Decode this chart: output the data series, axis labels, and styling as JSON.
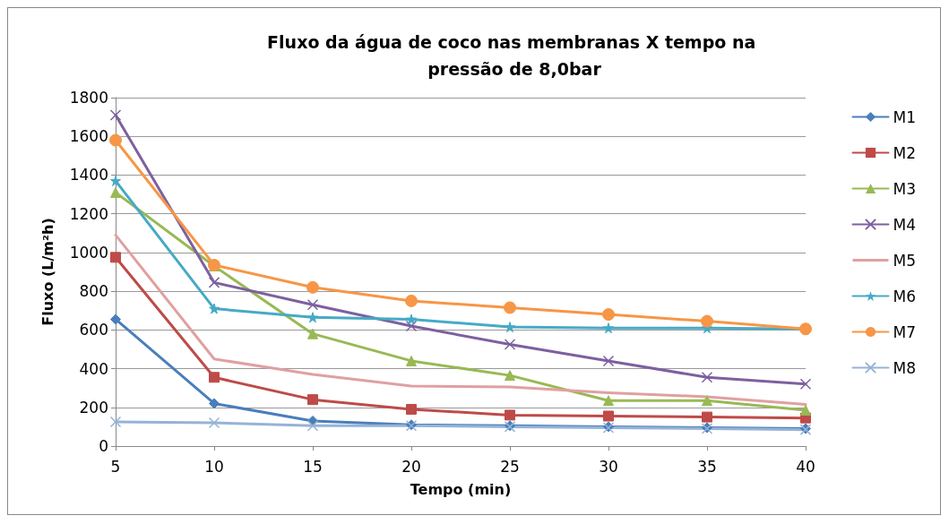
{
  "chart_data": {
    "type": "line",
    "title": "Fluxo da água de coco nas membranas X tempo na pressão de 8,0bar",
    "xlabel": "Tempo (min)",
    "ylabel": "Fluxo (L/m²h)",
    "categories": [
      "5",
      "10",
      "15",
      "20",
      "25",
      "30",
      "35",
      "40"
    ],
    "ylim": [
      0,
      1800
    ],
    "yticks": [
      0,
      200,
      400,
      600,
      800,
      1000,
      1200,
      1400,
      1600,
      1800
    ],
    "grid": "y",
    "legend": "right",
    "series": [
      {
        "name": "M1",
        "color": "#4a7ebb",
        "marker": "diamond",
        "values": [
          655,
          220,
          130,
          110,
          105,
          100,
          95,
          90
        ]
      },
      {
        "name": "M2",
        "color": "#be4b48",
        "marker": "square",
        "values": [
          975,
          355,
          240,
          190,
          160,
          155,
          150,
          145
        ]
      },
      {
        "name": "M3",
        "color": "#98b954",
        "marker": "triangle",
        "values": [
          1310,
          930,
          580,
          440,
          365,
          235,
          235,
          185
        ]
      },
      {
        "name": "M4",
        "color": "#7d60a0",
        "marker": "cross",
        "values": [
          1710,
          845,
          730,
          620,
          525,
          440,
          355,
          320
        ]
      },
      {
        "name": "M5",
        "color": "#e0a0a0",
        "marker": "none",
        "values": [
          1090,
          450,
          370,
          310,
          305,
          275,
          255,
          215
        ]
      },
      {
        "name": "M6",
        "color": "#46aac5",
        "marker": "star",
        "values": [
          1370,
          710,
          665,
          655,
          615,
          610,
          610,
          605
        ]
      },
      {
        "name": "M7",
        "color": "#f79646",
        "marker": "circle",
        "values": [
          1580,
          935,
          820,
          750,
          715,
          680,
          645,
          605
        ]
      },
      {
        "name": "M8",
        "color": "#95b3d7",
        "marker": "cross",
        "values": [
          125,
          120,
          105,
          105,
          100,
          95,
          90,
          85
        ]
      }
    ]
  }
}
